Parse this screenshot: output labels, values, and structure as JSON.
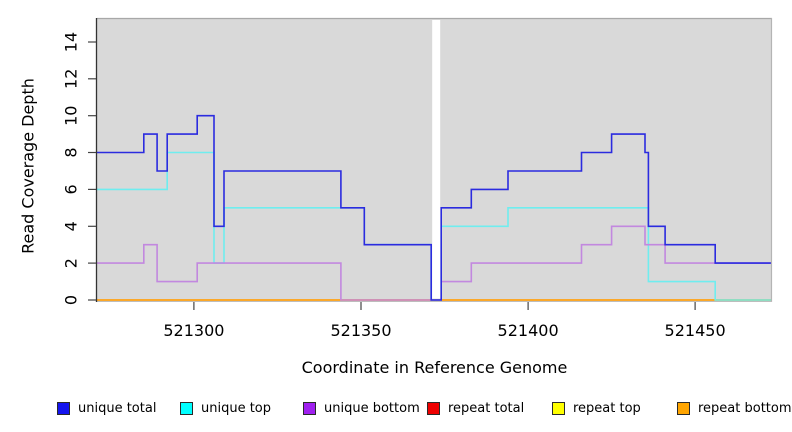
{
  "axes": {
    "x_title": "Coordinate in Reference Genome",
    "y_title": "Read Coverage Depth"
  },
  "legend": {
    "items": [
      {
        "label": "unique total",
        "color": "#1414EE"
      },
      {
        "label": "unique top",
        "color": "#00FFFF"
      },
      {
        "label": "unique bottom",
        "color": "#A020F0"
      },
      {
        "label": "repeat total",
        "color": "#EE0000"
      },
      {
        "label": "repeat top",
        "color": "#FFFF00"
      },
      {
        "label": "repeat bottom",
        "color": "#FFA500"
      }
    ]
  },
  "chart_data": {
    "type": "step-line",
    "title": "",
    "xlabel": "Coordinate in Reference Genome",
    "ylabel": "Read Coverage Depth",
    "xlim": [
      521271,
      521473
    ],
    "ylim": [
      0,
      15.3
    ],
    "x_ticks": [
      521300,
      521350,
      521400,
      521450
    ],
    "y_ticks": [
      0,
      2,
      4,
      6,
      8,
      10,
      12,
      14
    ],
    "panel_background": "#d9d9d9",
    "gap_region": {
      "from": 521371,
      "to": 521374
    },
    "x_end": 521473,
    "legend_position": "bottom",
    "series": [
      {
        "name": "repeat total",
        "color": "#E02020",
        "steps": [
          [
            521271,
            0
          ]
        ]
      },
      {
        "name": "repeat top",
        "color": "#FFEE30",
        "steps": [
          [
            521271,
            0
          ]
        ]
      },
      {
        "name": "repeat bottom",
        "color": "#FFA41C",
        "steps": [
          [
            521271,
            0
          ]
        ]
      },
      {
        "name": "unique top",
        "color": "#6FEDEF",
        "steps": [
          [
            521271,
            6
          ],
          [
            521292,
            8
          ],
          [
            521306,
            2
          ],
          [
            521309,
            5
          ],
          [
            521351,
            3
          ],
          [
            521371,
            0
          ],
          [
            521374,
            4
          ],
          [
            521394,
            5
          ],
          [
            521436,
            1
          ],
          [
            521456,
            0
          ]
        ]
      },
      {
        "name": "unique bottom",
        "color": "#C288DF",
        "steps": [
          [
            521271,
            2
          ],
          [
            521285,
            3
          ],
          [
            521289,
            1
          ],
          [
            521301,
            2
          ],
          [
            521344,
            0
          ],
          [
            521374,
            1
          ],
          [
            521383,
            2
          ],
          [
            521416,
            3
          ],
          [
            521425,
            4
          ],
          [
            521435,
            3
          ],
          [
            521441,
            2
          ]
        ]
      },
      {
        "name": "unique total",
        "color": "#2B2BDF",
        "steps": [
          [
            521271,
            8
          ],
          [
            521285,
            9
          ],
          [
            521289,
            7
          ],
          [
            521292,
            9
          ],
          [
            521301,
            10
          ],
          [
            521306,
            4
          ],
          [
            521309,
            7
          ],
          [
            521344,
            5
          ],
          [
            521351,
            3
          ],
          [
            521371,
            0
          ],
          [
            521374,
            5
          ],
          [
            521383,
            6
          ],
          [
            521394,
            7
          ],
          [
            521416,
            8
          ],
          [
            521425,
            9
          ],
          [
            521435,
            8
          ],
          [
            521436,
            4
          ],
          [
            521441,
            3
          ],
          [
            521456,
            2
          ]
        ]
      }
    ]
  }
}
